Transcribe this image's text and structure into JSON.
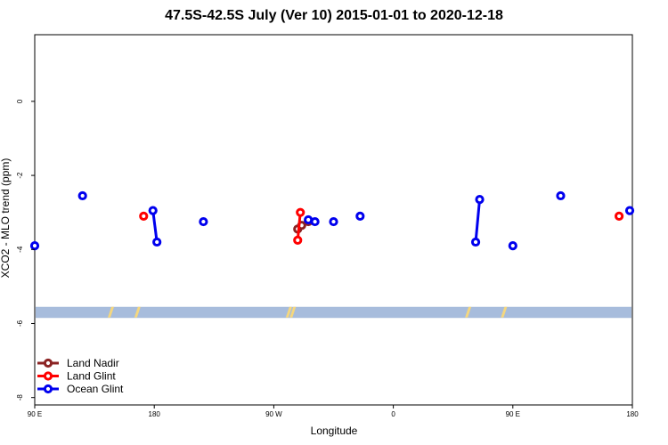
{
  "chart_data": {
    "type": "line",
    "title": "47.5S-42.5S July (Ver 10)   2015-01-01 to 2020-12-18",
    "xlabel": "Longitude",
    "ylabel": "XCO2 - MLO trend (ppm)",
    "xlim": [
      90,
      450
    ],
    "ylim": [
      -8.2,
      1.8
    ],
    "x_ticks": [
      {
        "value": 90,
        "label": "90 E"
      },
      {
        "value": 180,
        "label": "180"
      },
      {
        "value": 270,
        "label": "90 W"
      },
      {
        "value": 360,
        "label": "0"
      },
      {
        "value": 450,
        "label": "90 E"
      },
      {
        "value": 540,
        "label": "180"
      }
    ],
    "y_ticks": [
      {
        "value": 0,
        "label": "0"
      },
      {
        "value": -2,
        "label": "-2"
      },
      {
        "value": -4,
        "label": "-4"
      },
      {
        "value": -6,
        "label": "-6"
      },
      {
        "value": -8,
        "label": "-8"
      }
    ],
    "xlim_plot": [
      90,
      540
    ],
    "land_band": {
      "ymin": -5.85,
      "ymax": -5.55,
      "color": "#a7bcdc"
    },
    "land_patch_color": "#f5d77e",
    "land_patches_x": [
      147,
      167,
      281,
      284,
      416,
      443
    ],
    "grid": false,
    "legend_position": "bottom-left",
    "series": [
      {
        "name": "Land Nadir",
        "color": "#8b2323",
        "segments": [
          [
            {
              "x": 288,
              "y": -3.45
            },
            {
              "x": 291,
              "y": -3.35
            },
            {
              "x": 296,
              "y": -3.25
            }
          ]
        ]
      },
      {
        "name": "Land Glint",
        "color": "#ff0000",
        "segments": [
          [
            {
              "x": 172,
              "y": -3.1
            }
          ],
          [
            {
              "x": 288,
              "y": -3.75
            },
            {
              "x": 290,
              "y": -3.0
            }
          ],
          [
            {
              "x": 530,
              "y": -3.1
            }
          ]
        ]
      },
      {
        "name": "Ocean Glint",
        "color": "#0000ee",
        "segments": [
          [
            {
              "x": 90,
              "y": -3.9
            }
          ],
          [
            {
              "x": 126,
              "y": -2.55
            }
          ],
          [
            {
              "x": 179,
              "y": -2.95
            },
            {
              "x": 182,
              "y": -3.8
            }
          ],
          [
            {
              "x": 217,
              "y": -3.25
            }
          ],
          [
            {
              "x": 296,
              "y": -3.2
            }
          ],
          [
            {
              "x": 301,
              "y": -3.25
            }
          ],
          [
            {
              "x": 315,
              "y": -3.25
            }
          ],
          [
            {
              "x": 335,
              "y": -3.1
            }
          ],
          [
            {
              "x": 422,
              "y": -3.8
            },
            {
              "x": 425,
              "y": -2.65
            }
          ],
          [
            {
              "x": 450,
              "y": -3.9
            }
          ],
          [
            {
              "x": 486,
              "y": -2.55
            }
          ],
          [
            {
              "x": 538,
              "y": -2.95
            }
          ]
        ]
      }
    ]
  }
}
